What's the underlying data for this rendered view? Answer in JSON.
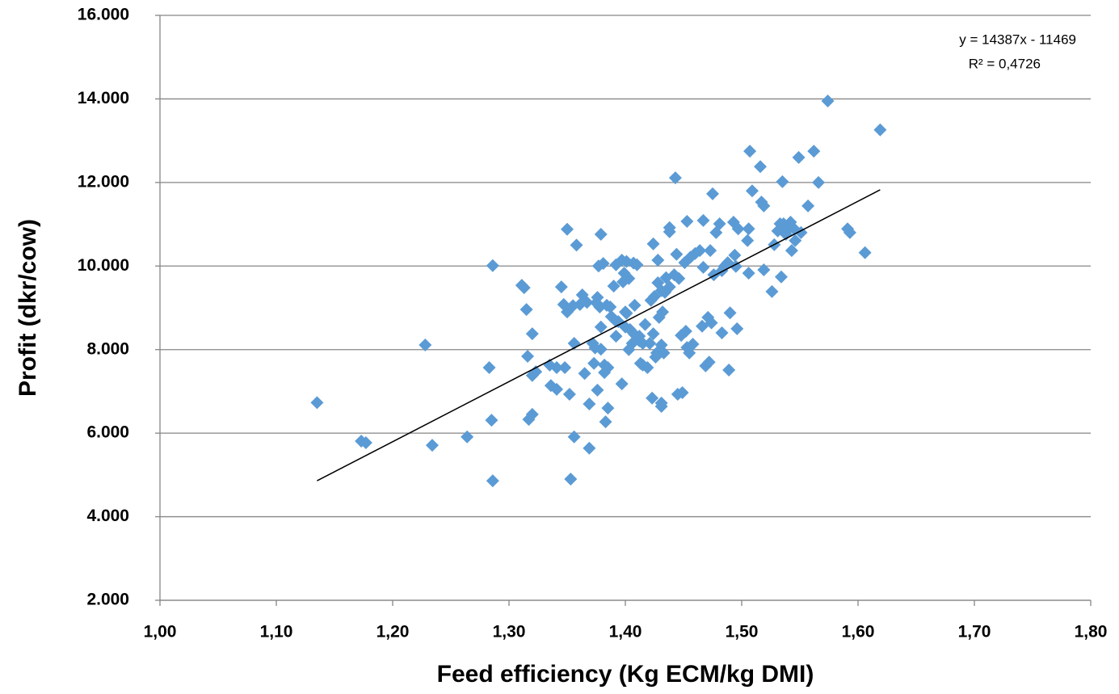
{
  "chart_data": {
    "type": "scatter",
    "x_label": "Feed efficiency  (Kg ECM/kg DMI)",
    "y_label": "Profit  (dkr/cow)",
    "equation": "y = 14387x - 11469",
    "r_squared": "R² = 0,4726",
    "color": "#5b9bd5",
    "grid": true,
    "xlim": [
      1.0,
      1.8
    ],
    "ylim": [
      2000,
      16000
    ],
    "xticks": [
      {
        "value": 1.0,
        "label": "1,00"
      },
      {
        "value": 1.1,
        "label": "1,10"
      },
      {
        "value": 1.2,
        "label": "1,20"
      },
      {
        "value": 1.3,
        "label": "1,30"
      },
      {
        "value": 1.4,
        "label": "1,40"
      },
      {
        "value": 1.5,
        "label": "1,50"
      },
      {
        "value": 1.6,
        "label": "1,60"
      },
      {
        "value": 1.7,
        "label": "1,70"
      },
      {
        "value": 1.8,
        "label": "1,80"
      }
    ],
    "yticks": [
      {
        "value": 2000,
        "label": "2.000"
      },
      {
        "value": 4000,
        "label": "4.000"
      },
      {
        "value": 6000,
        "label": "6.000"
      },
      {
        "value": 8000,
        "label": "8.000"
      },
      {
        "value": 10000,
        "label": "10.000"
      },
      {
        "value": 12000,
        "label": "12.000"
      },
      {
        "value": 14000,
        "label": "14.000"
      },
      {
        "value": 16000,
        "label": "16.000"
      }
    ],
    "trendline": {
      "x": [
        1.135,
        1.619
      ],
      "y": [
        4860,
        11824
      ]
    },
    "x": [
      1.135,
      1.173,
      1.177,
      1.228,
      1.234,
      1.264,
      1.283,
      1.285,
      1.286,
      1.286,
      1.311,
      1.313,
      1.315,
      1.316,
      1.317,
      1.32,
      1.32,
      1.32,
      1.323,
      1.335,
      1.336,
      1.341,
      1.341,
      1.345,
      1.347,
      1.348,
      1.35,
      1.35,
      1.352,
      1.353,
      1.355,
      1.356,
      1.356,
      1.358,
      1.361,
      1.363,
      1.365,
      1.367,
      1.369,
      1.369,
      1.372,
      1.373,
      1.374,
      1.375,
      1.376,
      1.376,
      1.377,
      1.378,
      1.379,
      1.379,
      1.379,
      1.381,
      1.382,
      1.382,
      1.383,
      1.384,
      1.385,
      1.385,
      1.387,
      1.388,
      1.39,
      1.392,
      1.392,
      1.392,
      1.394,
      1.397,
      1.397,
      1.398,
      1.399,
      1.4,
      1.4,
      1.401,
      1.401,
      1.403,
      1.403,
      1.404,
      1.406,
      1.407,
      1.408,
      1.408,
      1.41,
      1.412,
      1.412,
      1.413,
      1.415,
      1.415,
      1.417,
      1.419,
      1.421,
      1.422,
      1.423,
      1.424,
      1.424,
      1.425,
      1.426,
      1.427,
      1.428,
      1.428,
      1.429,
      1.431,
      1.431,
      1.431,
      1.431,
      1.432,
      1.433,
      1.434,
      1.435,
      1.438,
      1.438,
      1.438,
      1.442,
      1.443,
      1.444,
      1.445,
      1.446,
      1.448,
      1.449,
      1.451,
      1.452,
      1.453,
      1.453,
      1.455,
      1.456,
      1.458,
      1.46,
      1.464,
      1.466,
      1.467,
      1.467,
      1.469,
      1.471,
      1.472,
      1.473,
      1.474,
      1.475,
      1.476,
      1.478,
      1.481,
      1.483,
      1.483,
      1.485,
      1.488,
      1.489,
      1.49,
      1.493,
      1.494,
      1.495,
      1.496,
      1.497,
      1.505,
      1.506,
      1.506,
      1.507,
      1.509,
      1.516,
      1.517,
      1.519,
      1.519,
      1.526,
      1.528,
      1.531,
      1.533,
      1.534,
      1.535,
      1.536,
      1.538,
      1.54,
      1.542,
      1.543,
      1.545,
      1.546,
      1.549,
      1.551,
      1.557,
      1.562,
      1.566,
      1.574,
      1.591,
      1.593,
      1.606,
      1.619
    ],
    "values": [
      6730,
      5810,
      5770,
      8110,
      5710,
      5910,
      7570,
      6310,
      10010,
      4860,
      9540,
      9480,
      8960,
      7840,
      6330,
      6450,
      8380,
      7380,
      7470,
      7630,
      7140,
      7050,
      7570,
      9500,
      9080,
      7570,
      10880,
      8900,
      6930,
      4900,
      9050,
      8150,
      5910,
      10500,
      9080,
      9310,
      7430,
      9130,
      5640,
      6700,
      8150,
      7670,
      8040,
      9120,
      9250,
      7030,
      10000,
      9020,
      10760,
      8010,
      8540,
      10060,
      7630,
      7450,
      6270,
      9060,
      6600,
      7570,
      9020,
      8790,
      9520,
      8680,
      8320,
      10030,
      8670,
      10140,
      7180,
      9620,
      9830,
      8900,
      8540,
      10110,
      8870,
      8000,
      9700,
      8480,
      8150,
      10070,
      9060,
      8360,
      10030,
      8320,
      8210,
      7670,
      8150,
      7630,
      8600,
      7570,
      8150,
      9180,
      6840,
      8380,
      10530,
      9270,
      7820,
      7920,
      9600,
      10140,
      8770,
      6720,
      8110,
      9410,
      6640,
      8900,
      7920,
      9370,
      9720,
      10920,
      9500,
      10820,
      9790,
      12110,
      10280,
      6930,
      9700,
      8340,
      6970,
      10080,
      8440,
      8050,
      11070,
      7920,
      10210,
      8130,
      10300,
      10370,
      8560,
      11090,
      9970,
      7610,
      8770,
      7700,
      10370,
      8640,
      11730,
      9790,
      10800,
      11010,
      8400,
      9890,
      9990,
      10080,
      7510,
      8880,
      11050,
      10260,
      9990,
      8500,
      10890,
      10610,
      10890,
      9830,
      12750,
      11800,
      12380,
      11530,
      9910,
      11440,
      9390,
      10510,
      10840,
      11010,
      9740,
      12020,
      11010,
      10760,
      10880,
      11050,
      10370,
      10890,
      10610,
      12600,
      10800,
      11440,
      12750,
      12000,
      13950,
      10890,
      10800,
      10320,
      13260
    ]
  }
}
